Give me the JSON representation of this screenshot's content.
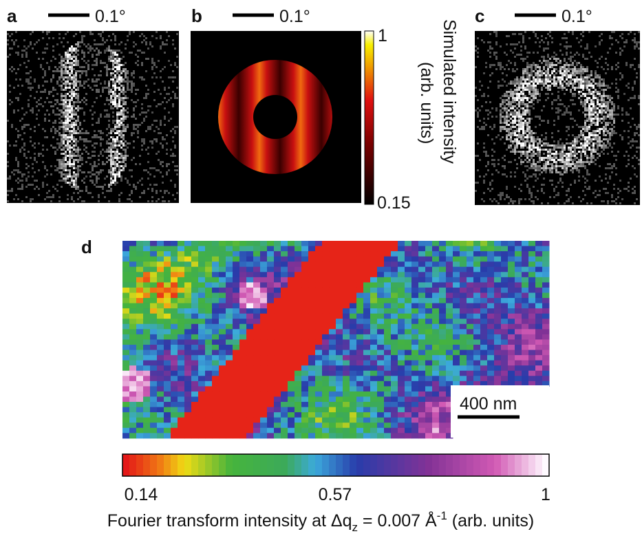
{
  "panels": [
    {
      "label": "a",
      "scale_bar": "0.1°"
    },
    {
      "label": "b",
      "scale_bar": "0.1°"
    },
    {
      "label": "c",
      "scale_bar": "0.1°"
    },
    {
      "label": "d",
      "scale_bar": "400 nm"
    }
  ],
  "colorbar_b": {
    "title_line1": "Simulated intensity",
    "title_line2": "(arb. units)",
    "max": "1",
    "min": "0.15"
  },
  "colorbar_d": {
    "ticks": [
      "0.14",
      "0.57",
      "1"
    ],
    "axis_label": {
      "main": "Fourier transform intensity at Δq",
      "sub": "z",
      "mid": " = 0.007 Å",
      "sup": "-1",
      "end": " (arb. units)"
    }
  }
}
